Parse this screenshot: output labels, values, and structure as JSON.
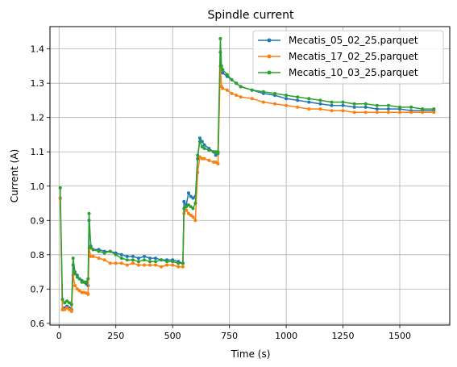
{
  "chart_data": {
    "type": "line",
    "title": "Spindle current",
    "xlabel": "Time (s)",
    "ylabel": "Current (A)",
    "xlim": [
      -40,
      1720
    ],
    "ylim": [
      0.595,
      1.465
    ],
    "xticks": [
      0,
      250,
      500,
      750,
      1000,
      1250,
      1500
    ],
    "yticks": [
      0.6,
      0.7,
      0.8,
      0.9,
      1.0,
      1.1,
      1.2,
      1.3,
      1.4
    ],
    "grid": true,
    "legend": "top-right",
    "series": [
      {
        "name": "Mecatis_05_02_25.parquet",
        "color": "#1f77b4",
        "x": [
          5,
          15,
          25,
          35,
          45,
          55,
          62,
          70,
          80,
          90,
          100,
          110,
          120,
          128,
          132,
          140,
          150,
          175,
          200,
          225,
          250,
          275,
          300,
          325,
          350,
          375,
          400,
          425,
          450,
          475,
          500,
          525,
          545,
          550,
          560,
          570,
          580,
          590,
          600,
          610,
          620,
          630,
          640,
          660,
          680,
          690,
          700,
          710,
          715,
          720,
          740,
          760,
          780,
          800,
          850,
          900,
          950,
          1000,
          1050,
          1100,
          1150,
          1200,
          1250,
          1300,
          1350,
          1400,
          1450,
          1500,
          1550,
          1600,
          1650
        ],
        "y": [
          0.965,
          0.64,
          0.645,
          0.65,
          0.645,
          0.64,
          0.77,
          0.745,
          0.74,
          0.73,
          0.725,
          0.72,
          0.715,
          0.71,
          0.9,
          0.825,
          0.815,
          0.815,
          0.81,
          0.81,
          0.805,
          0.8,
          0.795,
          0.795,
          0.79,
          0.795,
          0.79,
          0.79,
          0.785,
          0.785,
          0.785,
          0.78,
          0.775,
          0.955,
          0.945,
          0.98,
          0.97,
          0.965,
          0.97,
          1.08,
          1.14,
          1.13,
          1.12,
          1.11,
          1.1,
          1.09,
          1.1,
          1.39,
          1.34,
          1.33,
          1.32,
          1.31,
          1.3,
          1.29,
          1.28,
          1.27,
          1.265,
          1.255,
          1.25,
          1.245,
          1.24,
          1.235,
          1.235,
          1.23,
          1.23,
          1.225,
          1.225,
          1.225,
          1.22,
          1.22,
          1.22
        ]
      },
      {
        "name": "Mecatis_17_02_25.parquet",
        "color": "#ff7f0e",
        "x": [
          5,
          15,
          25,
          35,
          45,
          55,
          62,
          70,
          80,
          90,
          100,
          110,
          120,
          128,
          132,
          140,
          150,
          175,
          200,
          225,
          250,
          275,
          300,
          325,
          350,
          375,
          400,
          425,
          450,
          475,
          500,
          525,
          545,
          550,
          560,
          570,
          580,
          590,
          600,
          610,
          620,
          630,
          640,
          660,
          680,
          690,
          700,
          710,
          715,
          720,
          740,
          760,
          780,
          800,
          850,
          900,
          950,
          1000,
          1050,
          1100,
          1150,
          1200,
          1250,
          1300,
          1350,
          1400,
          1450,
          1500,
          1550,
          1600,
          1650
        ],
        "y": [
          0.965,
          0.64,
          0.64,
          0.645,
          0.64,
          0.635,
          0.74,
          0.71,
          0.7,
          0.695,
          0.69,
          0.69,
          0.688,
          0.685,
          0.82,
          0.795,
          0.795,
          0.79,
          0.785,
          0.775,
          0.775,
          0.775,
          0.77,
          0.775,
          0.77,
          0.77,
          0.77,
          0.77,
          0.765,
          0.77,
          0.77,
          0.765,
          0.765,
          0.92,
          0.93,
          0.92,
          0.915,
          0.91,
          0.9,
          1.04,
          1.085,
          1.08,
          1.08,
          1.075,
          1.07,
          1.07,
          1.065,
          1.35,
          1.29,
          1.285,
          1.28,
          1.27,
          1.265,
          1.26,
          1.255,
          1.245,
          1.24,
          1.235,
          1.23,
          1.225,
          1.225,
          1.22,
          1.22,
          1.215,
          1.215,
          1.215,
          1.215,
          1.215,
          1.215,
          1.215,
          1.215
        ]
      },
      {
        "name": "Mecatis_10_03_25.parquet",
        "color": "#2ca02c",
        "x": [
          5,
          15,
          25,
          35,
          45,
          55,
          62,
          70,
          80,
          90,
          100,
          110,
          120,
          128,
          132,
          140,
          150,
          175,
          200,
          225,
          250,
          275,
          300,
          325,
          350,
          375,
          400,
          425,
          450,
          475,
          500,
          525,
          545,
          550,
          560,
          570,
          580,
          590,
          600,
          610,
          620,
          630,
          640,
          660,
          680,
          690,
          700,
          710,
          715,
          720,
          740,
          760,
          780,
          800,
          850,
          900,
          950,
          1000,
          1050,
          1100,
          1150,
          1200,
          1250,
          1300,
          1350,
          1400,
          1450,
          1500,
          1550,
          1600,
          1650
        ],
        "y": [
          0.995,
          0.67,
          0.66,
          0.665,
          0.66,
          0.655,
          0.79,
          0.75,
          0.735,
          0.73,
          0.72,
          0.72,
          0.72,
          0.73,
          0.92,
          0.82,
          0.815,
          0.81,
          0.805,
          0.81,
          0.8,
          0.79,
          0.785,
          0.785,
          0.78,
          0.785,
          0.78,
          0.78,
          0.785,
          0.78,
          0.78,
          0.775,
          0.775,
          0.935,
          0.94,
          0.945,
          0.94,
          0.935,
          0.95,
          1.09,
          1.13,
          1.115,
          1.11,
          1.105,
          1.1,
          1.1,
          1.095,
          1.43,
          1.35,
          1.34,
          1.325,
          1.31,
          1.3,
          1.29,
          1.28,
          1.275,
          1.27,
          1.265,
          1.26,
          1.255,
          1.25,
          1.245,
          1.245,
          1.24,
          1.24,
          1.235,
          1.235,
          1.23,
          1.23,
          1.225,
          1.225
        ]
      }
    ]
  }
}
